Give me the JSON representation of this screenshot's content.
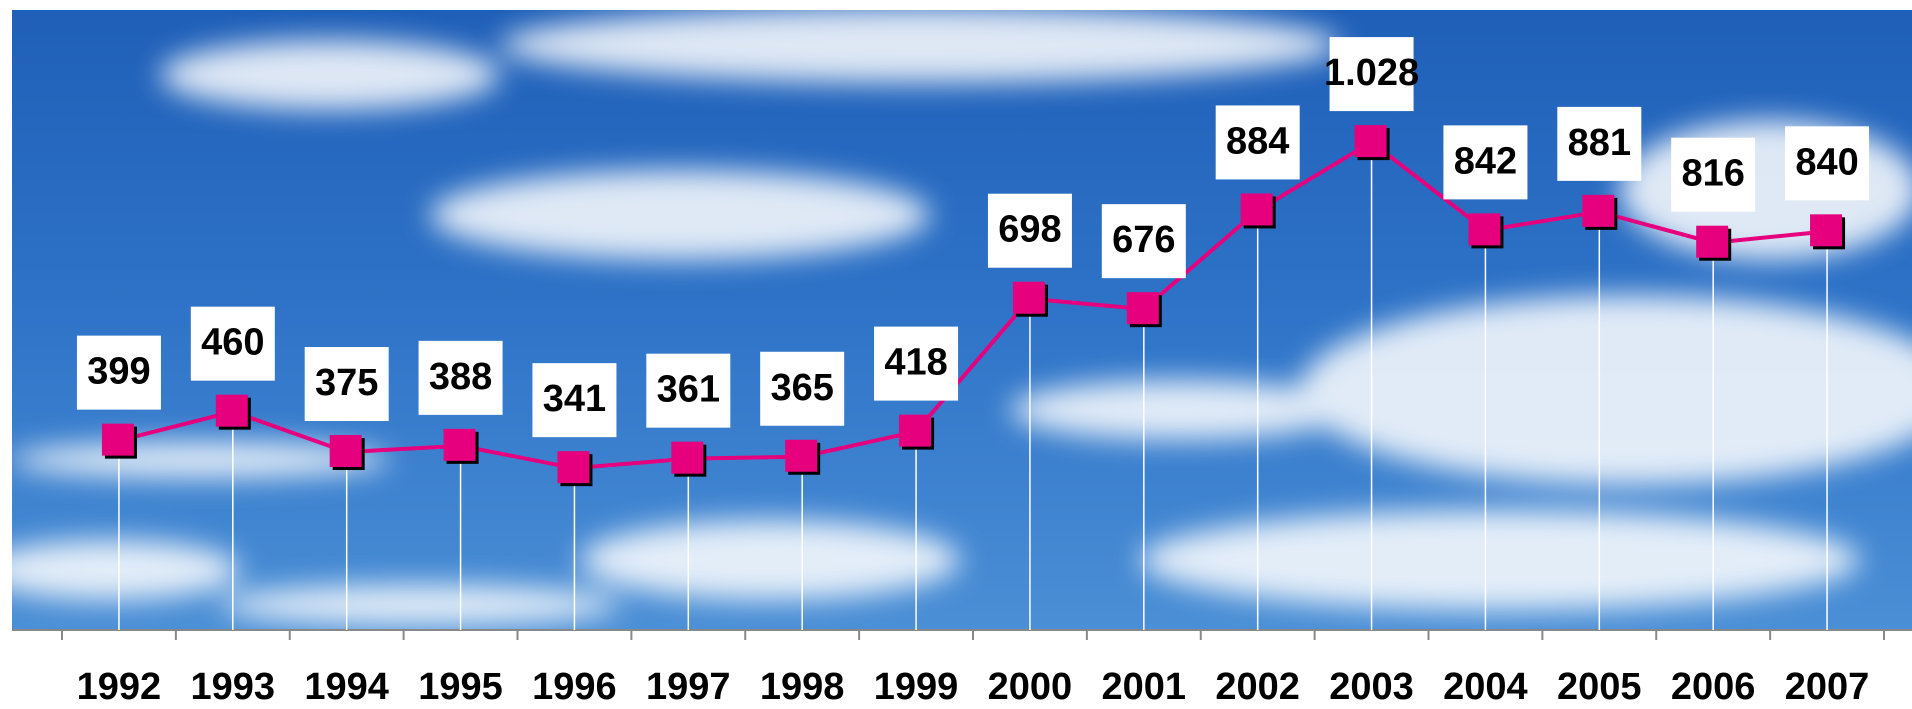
{
  "chart_data": {
    "type": "line",
    "categories": [
      "1992",
      "1993",
      "1994",
      "1995",
      "1996",
      "1997",
      "1998",
      "1999",
      "2000",
      "2001",
      "2002",
      "2003",
      "2004",
      "2005",
      "2006",
      "2007"
    ],
    "series": [
      {
        "color": "#e6007e",
        "values": [
          399,
          460,
          375,
          388,
          341,
          361,
          365,
          418,
          698,
          676,
          884,
          1028,
          842,
          881,
          816,
          840
        ],
        "value_labels": [
          "399",
          "460",
          "375",
          "388",
          "341",
          "361",
          "365",
          "418",
          "698",
          "676",
          "884",
          "1.028",
          "842",
          "881",
          "816",
          "840"
        ]
      }
    ],
    "ylim": [
      0,
      1300
    ]
  }
}
